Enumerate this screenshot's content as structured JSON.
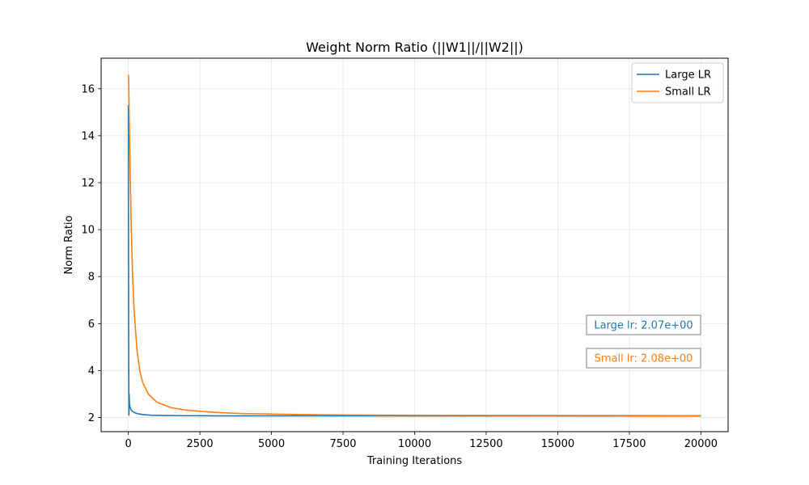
{
  "chart_data": {
    "type": "line",
    "title": "Weight Norm Ratio (||W1||/||W2||)",
    "xlabel": "Training Iterations",
    "ylabel": "Norm Ratio",
    "xlim": [
      -950,
      20950
    ],
    "ylim": [
      1.4,
      17.3
    ],
    "xticks": [
      0,
      2500,
      5000,
      7500,
      10000,
      12500,
      15000,
      17500,
      20000
    ],
    "yticks": [
      2,
      4,
      6,
      8,
      10,
      12,
      14,
      16
    ],
    "grid": true,
    "legend": "upper right",
    "series": [
      {
        "name": "Large LR",
        "color": "#1f77b4",
        "x": [
          0,
          5,
          10,
          15,
          20,
          30,
          40,
          60,
          80,
          100,
          150,
          200,
          300,
          500,
          800,
          1200,
          2000,
          3000,
          5000,
          8000,
          12000,
          16000,
          20000
        ],
        "y": [
          15.3,
          10.5,
          6.5,
          4.0,
          2.1,
          3.0,
          2.6,
          2.45,
          2.38,
          2.32,
          2.26,
          2.22,
          2.17,
          2.13,
          2.1,
          2.09,
          2.08,
          2.075,
          2.072,
          2.071,
          2.07,
          2.07,
          2.07
        ]
      },
      {
        "name": "Small LR",
        "color": "#ff7f0e",
        "x": [
          0,
          10,
          20,
          40,
          60,
          100,
          150,
          200,
          300,
          400,
          500,
          700,
          1000,
          1500,
          2000,
          3000,
          4000,
          6000,
          8000,
          10000,
          14000,
          20000
        ],
        "y": [
          16.6,
          16.4,
          15.8,
          14.2,
          12.8,
          10.2,
          8.0,
          6.6,
          4.9,
          4.0,
          3.5,
          3.0,
          2.65,
          2.42,
          2.32,
          2.22,
          2.17,
          2.13,
          2.11,
          2.1,
          2.09,
          2.08
        ]
      }
    ],
    "annotations": [
      {
        "text": "Large lr: 2.07e+00",
        "color": "#1f77b4"
      },
      {
        "text": "Small lr: 2.08e+00",
        "color": "#ff7f0e"
      }
    ]
  }
}
